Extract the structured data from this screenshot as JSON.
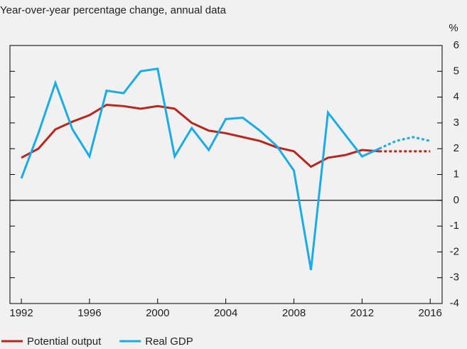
{
  "chart_data": {
    "type": "line",
    "title": "Year-over-year percentage change, annual data",
    "y_label": "%",
    "x": [
      1992,
      1993,
      1994,
      1995,
      1996,
      1997,
      1998,
      1999,
      2000,
      2001,
      2002,
      2003,
      2004,
      2005,
      2006,
      2007,
      2008,
      2009,
      2010,
      2011,
      2012,
      2013,
      2014,
      2015,
      2016
    ],
    "series": [
      {
        "name": "Potential output",
        "color": "#b8261d",
        "values": [
          1.65,
          2.0,
          2.75,
          3.05,
          3.3,
          3.7,
          3.65,
          3.55,
          3.65,
          3.55,
          3.0,
          2.7,
          2.6,
          2.45,
          2.3,
          2.05,
          1.9,
          1.3,
          1.65,
          1.75,
          1.95,
          1.9,
          1.9,
          1.9,
          1.9
        ]
      },
      {
        "name": "Real GDP",
        "color": "#19ace6",
        "values": [
          0.85,
          2.6,
          4.55,
          2.75,
          1.7,
          4.25,
          4.15,
          5.0,
          5.1,
          1.7,
          2.8,
          1.95,
          3.15,
          3.2,
          2.7,
          2.1,
          1.15,
          -2.7,
          3.4,
          2.55,
          1.7,
          2.0,
          2.3,
          2.45,
          2.3
        ]
      }
    ],
    "dashed_from": 2013,
    "xlim": [
      1991.33,
      2016.7
    ],
    "xticks": [
      1992,
      1996,
      2000,
      2004,
      2008,
      2012,
      2016
    ],
    "ylim": [
      -4,
      6
    ],
    "yticks": [
      -4,
      -3,
      -2,
      -1,
      0,
      1,
      2,
      3,
      4,
      5,
      6
    ],
    "zero_line": true,
    "legend": "bottom"
  }
}
